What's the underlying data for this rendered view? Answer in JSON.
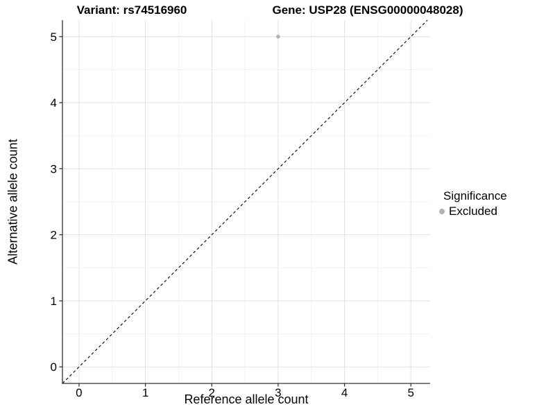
{
  "titles": {
    "variant": "Variant: rs74516960",
    "gene": "Gene: USP28 (ENSG00000048028)"
  },
  "legend": {
    "title": "Significance",
    "items": [
      {
        "label": "Excluded",
        "color": "#b3b3b3",
        "marker": "circle"
      }
    ]
  },
  "chart_data": {
    "type": "scatter",
    "title": "Variant: rs74516960 — Gene: USP28 (ENSG00000048028)",
    "xlabel": "Reference allele count",
    "ylabel": "Alternative allele count",
    "xlim": [
      -0.25,
      5.29
    ],
    "ylim": [
      -0.25,
      5.25
    ],
    "x_ticks": [
      0,
      1,
      2,
      3,
      4,
      5
    ],
    "y_ticks": [
      0,
      1,
      2,
      3,
      4,
      5
    ],
    "minor_grid_step": 0.5,
    "grid": true,
    "legend_position": "right",
    "series": [
      {
        "name": "Excluded",
        "color": "#b3b3b3",
        "points": [
          [
            3,
            5
          ]
        ]
      }
    ],
    "reference_line": {
      "kind": "identity y=x",
      "style": "dashed",
      "color": "#000000"
    },
    "colors": {
      "grid_major": "#e3e3e3",
      "grid_minor": "#f0f0f0",
      "axis": "#333333",
      "text": "#000000",
      "background": "#ffffff"
    }
  }
}
